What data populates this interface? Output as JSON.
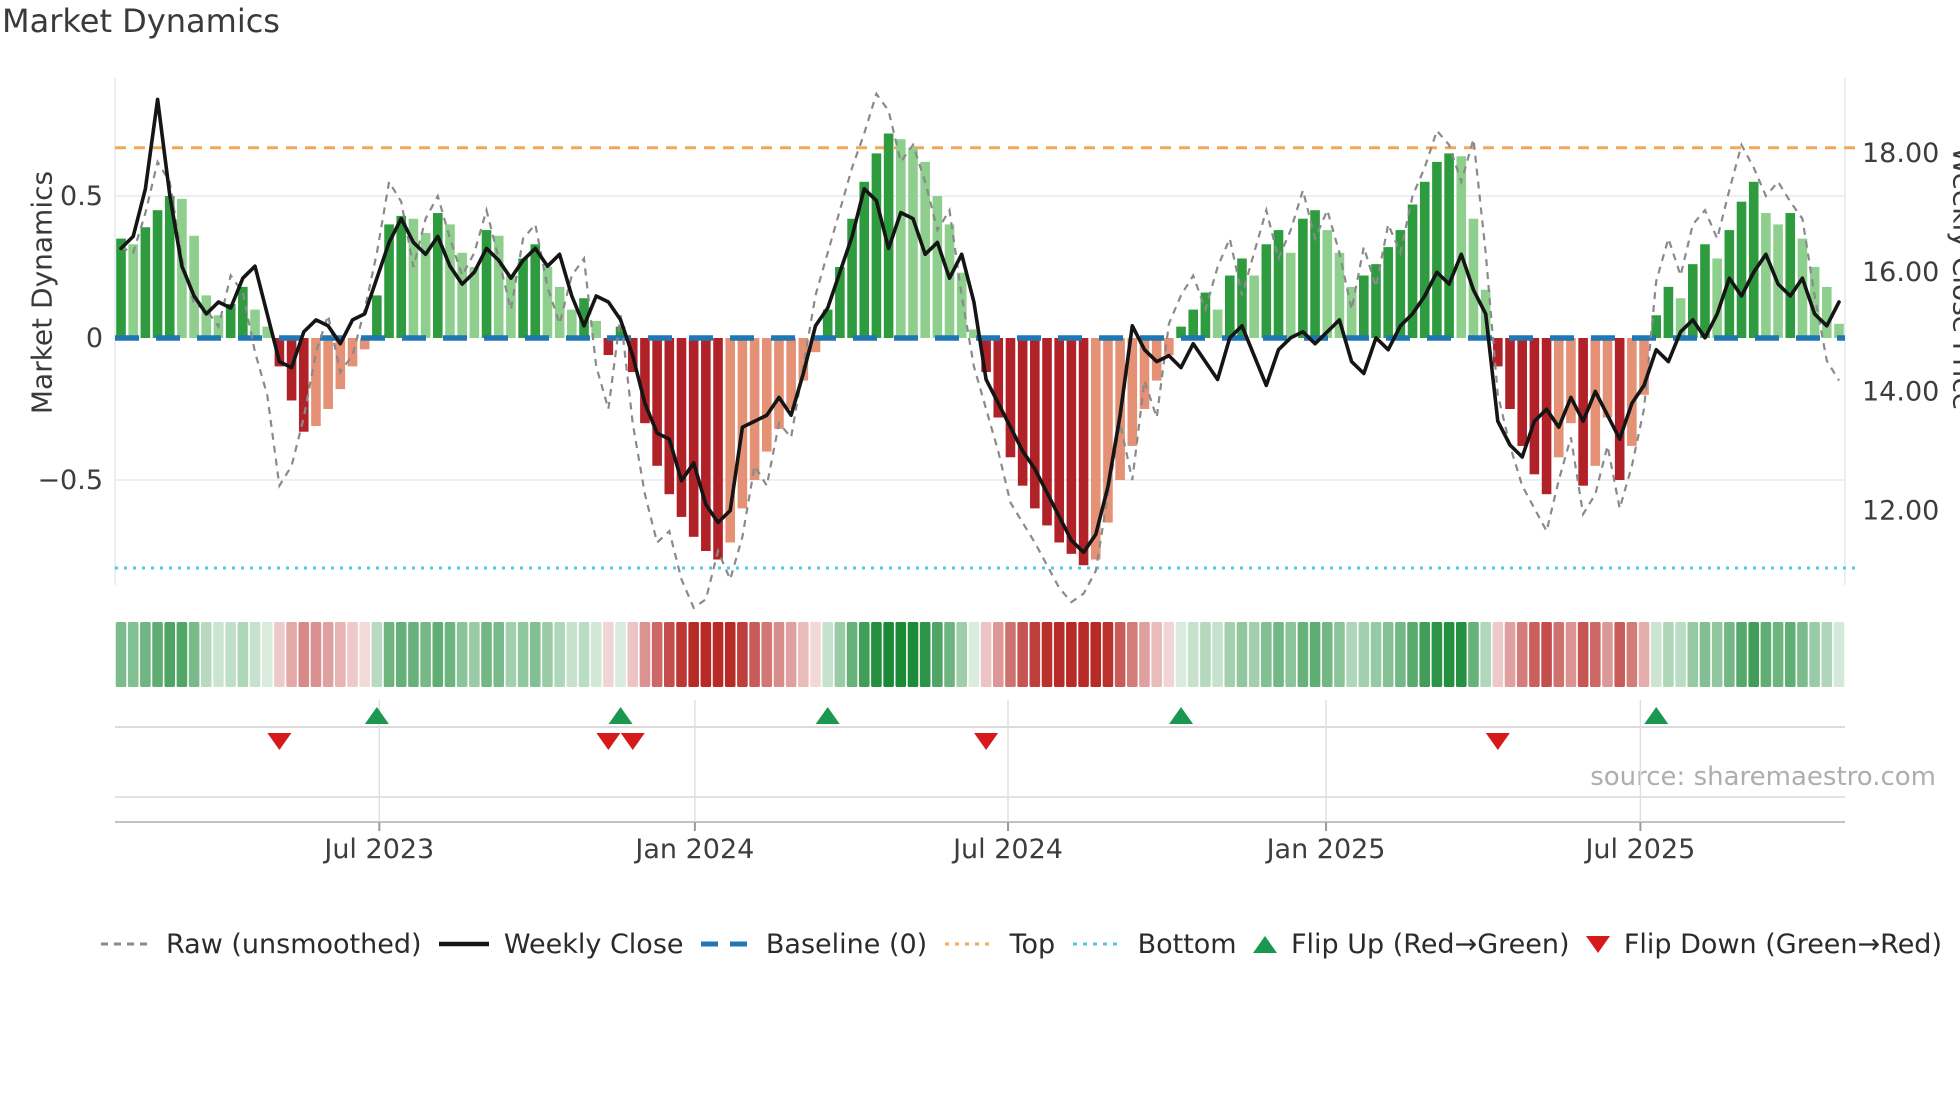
{
  "title": "Market Dynamics",
  "source_text": "source: sharemaestro.com",
  "axes": {
    "left": {
      "label": "Market Dynamics",
      "ticks": [
        {
          "value": 0.5,
          "label": "0.5"
        },
        {
          "value": 0.0,
          "label": "0"
        },
        {
          "value": -0.5,
          "label": "−0.5"
        }
      ]
    },
    "right": {
      "label": "Weekly Close Price",
      "ticks": [
        {
          "value": 18.0,
          "label": "18.00"
        },
        {
          "value": 16.0,
          "label": "16.00"
        },
        {
          "value": 14.0,
          "label": "14.00"
        },
        {
          "value": 12.0,
          "label": "12.00"
        }
      ]
    },
    "x": {
      "ticks": [
        {
          "week": 21.2,
          "label": "Jul 2023"
        },
        {
          "week": 47.1,
          "label": "Jan 2024"
        },
        {
          "week": 72.8,
          "label": "Jul 2024"
        },
        {
          "week": 98.9,
          "label": "Jan 2025"
        },
        {
          "week": 124.7,
          "label": "Jul 2025"
        }
      ]
    }
  },
  "legend": [
    {
      "id": "raw",
      "label": "Raw (unsmoothed)",
      "swatch": "dashed-line",
      "color": "#8a8a8a"
    },
    {
      "id": "close",
      "label": "Weekly Close",
      "swatch": "solid-line",
      "color": "#151515"
    },
    {
      "id": "baseline",
      "label": "Baseline (0)",
      "swatch": "dash-line",
      "color": "#1f77b4"
    },
    {
      "id": "top",
      "label": "Top",
      "swatch": "dotted-line",
      "color": "#f4a758"
    },
    {
      "id": "bottom",
      "label": "Bottom",
      "swatch": "dotted-line",
      "color": "#55c8ea"
    },
    {
      "id": "flipup",
      "label": "Flip Up (Red→Green)",
      "swatch": "triangle-up",
      "color": "#1a9850"
    },
    {
      "id": "flipdown",
      "label": "Flip Down (Green→Red)",
      "swatch": "triangle-down",
      "color": "#d7191c"
    }
  ],
  "colors": {
    "bar_green_strong": "#2e9b3f",
    "bar_green_light": "#8ecf8e",
    "bar_red_strong": "#b02227",
    "bar_red_light": "#e59176",
    "close_line": "#151515",
    "raw_line": "#8a8a8a",
    "baseline": "#1f77b4",
    "top_line": "#f4a758",
    "bottom_line": "#55c8ea",
    "flip_up": "#1a9850",
    "flip_down": "#d7191c",
    "grid": "#e7eaf2",
    "panel_grid": "#d9d9d9",
    "tick_text": "#3d3d3d"
  },
  "chart_data": {
    "type": "bar+line",
    "title": "Market Dynamics",
    "ylabel_left": "Market Dynamics",
    "ylabel_right": "Weekly Close Price",
    "baseline": 0,
    "top_level": 0.67,
    "bottom_level": -0.81,
    "ylim_left": [
      -0.87,
      0.92
    ],
    "xtick_labels": [
      "Jul 2023",
      "Jan 2024",
      "Jul 2024",
      "Jan 2025",
      "Jul 2025"
    ],
    "weeks": 142,
    "oscillator": [
      0.35,
      0.33,
      0.39,
      0.45,
      0.5,
      0.49,
      0.36,
      0.15,
      0.08,
      0.12,
      0.18,
      0.1,
      0.04,
      -0.1,
      -0.22,
      -0.33,
      -0.31,
      -0.25,
      -0.18,
      -0.1,
      -0.04,
      0.15,
      0.4,
      0.43,
      0.42,
      0.37,
      0.44,
      0.4,
      0.3,
      0.25,
      0.38,
      0.36,
      0.22,
      0.28,
      0.33,
      0.25,
      0.18,
      0.1,
      0.14,
      0.06,
      -0.06,
      0.04,
      -0.12,
      -0.3,
      -0.45,
      -0.55,
      -0.63,
      -0.7,
      -0.75,
      -0.78,
      -0.72,
      -0.6,
      -0.5,
      -0.4,
      -0.32,
      -0.25,
      -0.15,
      -0.05,
      0.1,
      0.25,
      0.42,
      0.55,
      0.65,
      0.72,
      0.7,
      0.67,
      0.62,
      0.5,
      0.4,
      0.23,
      0.03,
      -0.12,
      -0.28,
      -0.42,
      -0.52,
      -0.6,
      -0.66,
      -0.72,
      -0.76,
      -0.8,
      -0.78,
      -0.65,
      -0.5,
      -0.38,
      -0.25,
      -0.15,
      -0.06,
      0.04,
      0.1,
      0.16,
      0.1,
      0.22,
      0.28,
      0.22,
      0.33,
      0.38,
      0.3,
      0.42,
      0.45,
      0.38,
      0.3,
      0.18,
      0.22,
      0.26,
      0.32,
      0.38,
      0.47,
      0.55,
      0.62,
      0.65,
      0.64,
      0.42,
      0.17,
      -0.1,
      -0.25,
      -0.38,
      -0.48,
      -0.55,
      -0.42,
      -0.3,
      -0.52,
      -0.45,
      -0.28,
      -0.5,
      -0.38,
      -0.2,
      0.08,
      0.18,
      0.14,
      0.26,
      0.33,
      0.28,
      0.38,
      0.48,
      0.55,
      0.44,
      0.4,
      0.44,
      0.35,
      0.25,
      0.18,
      0.05
    ],
    "weekly_close": [
      16.4,
      16.6,
      17.4,
      18.9,
      17.3,
      16.1,
      15.6,
      15.3,
      15.5,
      15.4,
      15.9,
      16.1,
      15.3,
      14.5,
      14.4,
      15.0,
      15.2,
      15.1,
      14.8,
      15.2,
      15.3,
      15.9,
      16.5,
      16.9,
      16.5,
      16.3,
      16.6,
      16.1,
      15.8,
      16.0,
      16.4,
      16.2,
      15.9,
      16.2,
      16.4,
      16.1,
      16.3,
      15.6,
      15.1,
      15.6,
      15.5,
      15.2,
      14.6,
      13.8,
      13.3,
      13.2,
      12.5,
      12.8,
      12.1,
      11.8,
      12.0,
      13.4,
      13.5,
      13.6,
      13.9,
      13.6,
      14.3,
      15.1,
      15.4,
      16.0,
      16.6,
      17.4,
      17.2,
      16.4,
      17.0,
      16.9,
      16.3,
      16.5,
      15.9,
      16.3,
      15.5,
      14.2,
      13.8,
      13.4,
      13.0,
      12.7,
      12.3,
      11.9,
      11.5,
      11.3,
      11.6,
      12.4,
      13.6,
      15.1,
      14.7,
      14.5,
      14.6,
      14.4,
      14.8,
      14.5,
      14.2,
      14.9,
      15.1,
      14.6,
      14.1,
      14.7,
      14.9,
      15.0,
      14.8,
      15.0,
      15.2,
      14.5,
      14.3,
      14.9,
      14.7,
      15.1,
      15.3,
      15.6,
      16.0,
      15.8,
      16.3,
      15.7,
      15.3,
      13.5,
      13.1,
      12.9,
      13.5,
      13.7,
      13.4,
      13.9,
      13.5,
      14.0,
      13.6,
      13.2,
      13.8,
      14.1,
      14.7,
      14.5,
      15.0,
      15.2,
      14.9,
      15.3,
      15.9,
      15.6,
      16.0,
      16.3,
      15.8,
      15.6,
      15.9,
      15.3,
      15.1,
      15.5
    ],
    "raw": [
      0.32,
      0.3,
      0.44,
      0.62,
      0.55,
      0.28,
      0.12,
      0.1,
      0.04,
      0.22,
      0.16,
      -0.05,
      -0.2,
      -0.52,
      -0.45,
      -0.28,
      -0.05,
      0.08,
      -0.12,
      -0.06,
      0.1,
      0.3,
      0.55,
      0.48,
      0.25,
      0.42,
      0.5,
      0.35,
      0.22,
      0.3,
      0.45,
      0.28,
      0.1,
      0.35,
      0.4,
      0.18,
      0.05,
      0.22,
      0.28,
      -0.1,
      -0.25,
      0.08,
      -0.3,
      -0.55,
      -0.72,
      -0.68,
      -0.85,
      -0.95,
      -0.92,
      -0.75,
      -0.85,
      -0.7,
      -0.45,
      -0.52,
      -0.3,
      -0.35,
      -0.1,
      0.15,
      0.3,
      0.45,
      0.6,
      0.72,
      0.86,
      0.8,
      0.62,
      0.68,
      0.55,
      0.38,
      0.45,
      0.15,
      -0.1,
      -0.25,
      -0.4,
      -0.58,
      -0.65,
      -0.72,
      -0.8,
      -0.88,
      -0.93,
      -0.9,
      -0.82,
      -0.55,
      -0.3,
      -0.5,
      -0.15,
      -0.28,
      0.05,
      0.15,
      0.22,
      0.1,
      0.25,
      0.35,
      0.15,
      0.3,
      0.45,
      0.28,
      0.38,
      0.52,
      0.35,
      0.45,
      0.3,
      0.1,
      0.32,
      0.18,
      0.4,
      0.3,
      0.5,
      0.6,
      0.73,
      0.68,
      0.55,
      0.7,
      0.3,
      -0.2,
      -0.38,
      -0.52,
      -0.6,
      -0.68,
      -0.5,
      -0.35,
      -0.62,
      -0.55,
      -0.38,
      -0.6,
      -0.45,
      -0.25,
      0.2,
      0.35,
      0.22,
      0.4,
      0.45,
      0.35,
      0.52,
      0.68,
      0.6,
      0.5,
      0.55,
      0.48,
      0.42,
      0.15,
      -0.08,
      -0.15
    ],
    "flip_up_weeks": [
      21,
      41,
      58,
      87,
      126
    ],
    "flip_down_weeks": [
      13,
      40,
      42,
      71,
      113
    ],
    "series_names": [
      "Raw (unsmoothed)",
      "Weekly Close",
      "Baseline (0)",
      "Top",
      "Bottom",
      "Flip Up (Red→Green)",
      "Flip Down (Green→Red)"
    ]
  }
}
